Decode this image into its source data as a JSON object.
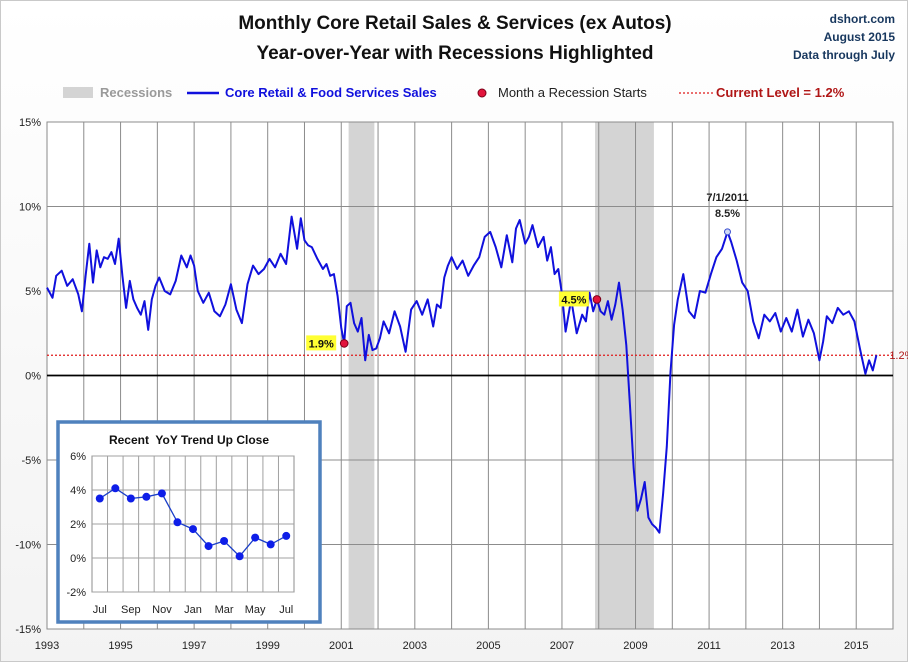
{
  "chart_data": [
    {
      "type": "line",
      "title": "Monthly Core Retail Sales & Services (ex Autos)",
      "subtitle": "Year-over-Year with Recessions Highlighted",
      "source": [
        "dshort.com",
        "August 2015",
        "Data through July"
      ],
      "legend": {
        "recessions": "Recessions",
        "series": "Core Retail & Food Services Sales",
        "recession_start": "Month a Recession Starts",
        "current": "Current Level = 1.2%"
      },
      "y_ticks": [
        "15%",
        "10%",
        "5%",
        "0%",
        "-5%",
        "-10%",
        "-15%"
      ],
      "y_tick_values": [
        15,
        10,
        5,
        0,
        -5,
        -10,
        -15
      ],
      "ylim": [
        -15,
        15
      ],
      "xlim": [
        1993,
        2016
      ],
      "x_ticks": [
        "1993",
        "1995",
        "1997",
        "1999",
        "2001",
        "2003",
        "2005",
        "2007",
        "2009",
        "2011",
        "2013",
        "2015"
      ],
      "x_tick_values": [
        1993,
        1995,
        1997,
        1999,
        2001,
        2003,
        2005,
        2007,
        2009,
        2011,
        2013,
        2015
      ],
      "recessions": [
        [
          2001.2,
          2001.9
        ],
        [
          2007.9,
          2009.5
        ]
      ],
      "current_level": 1.2,
      "current_label": "1.2%",
      "series": [
        {
          "name": "Core Retail & Food Services Sales",
          "x": [
            1993.0,
            1993.15,
            1993.25,
            1993.4,
            1993.55,
            1993.7,
            1993.85,
            1993.95,
            1994.05,
            1994.15,
            1994.25,
            1994.35,
            1994.45,
            1994.55,
            1994.65,
            1994.75,
            1994.85,
            1994.95,
            1995.05,
            1995.15,
            1995.25,
            1995.35,
            1995.45,
            1995.55,
            1995.65,
            1995.75,
            1995.85,
            1995.95,
            1996.05,
            1996.2,
            1996.35,
            1996.5,
            1996.65,
            1996.8,
            1996.9,
            1997.0,
            1997.1,
            1997.25,
            1997.4,
            1997.55,
            1997.7,
            1997.85,
            1998.0,
            1998.15,
            1998.3,
            1998.45,
            1998.6,
            1998.75,
            1998.9,
            1999.05,
            1999.2,
            1999.35,
            1999.5,
            1999.65,
            1999.8,
            1999.9,
            2000.0,
            2000.1,
            2000.2,
            2000.35,
            2000.5,
            2000.6,
            2000.7,
            2000.8,
            2000.9,
            2001.0,
            2001.08,
            2001.15,
            2001.25,
            2001.35,
            2001.45,
            2001.55,
            2001.65,
            2001.75,
            2001.85,
            2001.95,
            2002.05,
            2002.15,
            2002.3,
            2002.45,
            2002.6,
            2002.75,
            2002.9,
            2003.05,
            2003.2,
            2003.35,
            2003.5,
            2003.6,
            2003.7,
            2003.8,
            2003.9,
            2004.0,
            2004.15,
            2004.3,
            2004.45,
            2004.6,
            2004.75,
            2004.9,
            2005.05,
            2005.2,
            2005.35,
            2005.5,
            2005.65,
            2005.75,
            2005.85,
            2006.0,
            2006.1,
            2006.2,
            2006.35,
            2006.5,
            2006.6,
            2006.7,
            2006.8,
            2006.9,
            2007.0,
            2007.1,
            2007.25,
            2007.4,
            2007.55,
            2007.65,
            2007.75,
            2007.85,
            2007.95,
            2008.05,
            2008.15,
            2008.25,
            2008.35,
            2008.45,
            2008.55,
            2008.65,
            2008.75,
            2008.85,
            2008.95,
            2009.05,
            2009.15,
            2009.25,
            2009.35,
            2009.45,
            2009.55,
            2009.65,
            2009.75,
            2009.85,
            2009.95,
            2010.05,
            2010.15,
            2010.3,
            2010.45,
            2010.6,
            2010.75,
            2010.9,
            2011.05,
            2011.2,
            2011.35,
            2011.5,
            2011.6,
            2011.75,
            2011.9,
            2012.05,
            2012.2,
            2012.35,
            2012.5,
            2012.65,
            2012.8,
            2012.95,
            2013.1,
            2013.25,
            2013.4,
            2013.55,
            2013.7,
            2013.85,
            2014.0,
            2014.1,
            2014.2,
            2014.35,
            2014.5,
            2014.65,
            2014.8,
            2014.95,
            2015.1,
            2015.25,
            2015.35,
            2015.45,
            2015.55
          ],
          "values": [
            5.2,
            4.6,
            5.9,
            6.2,
            5.3,
            5.7,
            4.8,
            3.8,
            5.9,
            7.8,
            5.5,
            7.4,
            6.4,
            7.0,
            6.9,
            7.3,
            6.6,
            8.1,
            5.9,
            4.0,
            5.6,
            4.5,
            4.0,
            3.6,
            4.4,
            2.7,
            4.5,
            5.3,
            5.8,
            5.0,
            4.8,
            5.6,
            7.1,
            6.4,
            7.1,
            6.5,
            5.0,
            4.3,
            4.9,
            3.8,
            3.5,
            4.2,
            5.4,
            3.9,
            3.1,
            5.4,
            6.5,
            6.0,
            6.3,
            6.9,
            6.4,
            7.2,
            6.6,
            9.4,
            7.5,
            9.3,
            8.0,
            7.7,
            7.6,
            6.9,
            6.3,
            6.6,
            5.9,
            6.0,
            4.7,
            2.8,
            1.9,
            4.1,
            4.3,
            3.1,
            2.6,
            3.4,
            0.9,
            2.4,
            1.5,
            1.6,
            2.2,
            3.2,
            2.5,
            3.8,
            2.9,
            1.4,
            3.9,
            4.4,
            3.6,
            4.5,
            2.9,
            4.2,
            4.0,
            5.8,
            6.5,
            7.0,
            6.3,
            6.8,
            5.9,
            6.5,
            7.0,
            8.2,
            8.5,
            7.6,
            6.4,
            8.3,
            6.7,
            8.7,
            9.2,
            7.8,
            8.2,
            8.9,
            7.6,
            8.2,
            6.8,
            7.6,
            6.0,
            6.3,
            4.8,
            2.6,
            4.5,
            2.5,
            3.6,
            3.2,
            4.9,
            3.8,
            4.5,
            3.8,
            3.6,
            4.4,
            3.3,
            4.2,
            5.5,
            3.9,
            1.8,
            -1.8,
            -5.5,
            -8.0,
            -7.3,
            -6.3,
            -8.4,
            -8.8,
            -9.0,
            -9.3,
            -7.0,
            -4.2,
            0.2,
            3.0,
            4.5,
            6.0,
            3.8,
            3.4,
            5.0,
            4.9,
            6.0,
            7.0,
            7.5,
            8.5,
            7.9,
            6.8,
            5.5,
            5.0,
            3.2,
            2.2,
            3.6,
            3.2,
            3.7,
            2.6,
            3.4,
            2.6,
            3.9,
            2.3,
            3.3,
            2.5,
            0.9,
            2.0,
            3.5,
            3.1,
            4.0,
            3.6,
            3.8,
            3.2,
            1.6,
            0.1,
            0.9,
            0.3,
            1.2
          ]
        }
      ],
      "annotations": [
        {
          "label": "1.9%",
          "x": 2001.08,
          "y": 1.9,
          "type": "recession-start"
        },
        {
          "label": "4.5%",
          "x": 2007.95,
          "y": 4.5,
          "type": "recession-start"
        },
        {
          "label": "7/1/2011",
          "value_label": "8.5%",
          "x": 2011.5,
          "y": 8.5,
          "type": "peak"
        }
      ]
    },
    {
      "type": "line",
      "title": "Recent  YoY Trend Up Close",
      "categories": [
        "Jul",
        "Aug",
        "Sep",
        "Oct",
        "Nov",
        "Dec",
        "Jan",
        "Feb",
        "Mar",
        "Apr",
        "May",
        "Jun",
        "Jul"
      ],
      "x_tick_labels": [
        "Jul",
        "Sep",
        "Nov",
        "Jan",
        "Mar",
        "May",
        "Jul"
      ],
      "values": [
        3.5,
        4.1,
        3.5,
        3.6,
        3.8,
        2.1,
        1.7,
        0.7,
        1.0,
        0.1,
        1.2,
        0.8,
        1.3
      ],
      "ylim": [
        -2,
        6
      ],
      "y_ticks": [
        "6%",
        "4%",
        "2%",
        "0%",
        "-2%"
      ],
      "y_tick_values": [
        6,
        4,
        2,
        0,
        -2
      ]
    }
  ]
}
